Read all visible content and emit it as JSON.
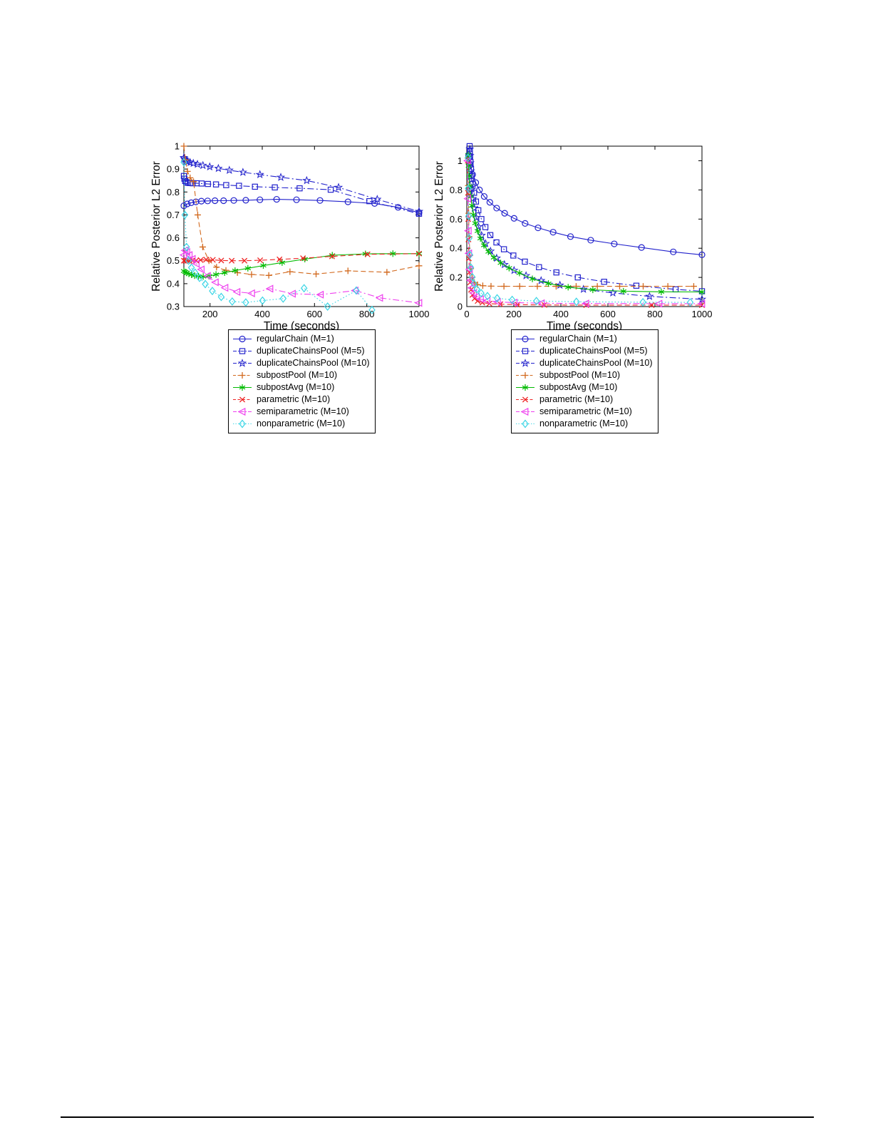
{
  "figure": {
    "xlabel": "Time (seconds)",
    "ylabel": "Relative Posterior L2 Error"
  },
  "chart_data": [
    {
      "id": "left",
      "type": "line",
      "title": "",
      "xlabel": "Time (seconds)",
      "ylabel": "Relative Posterior L2 Error",
      "xlim": [
        100,
        1000
      ],
      "ylim": [
        0.3,
        1.0
      ],
      "xticks": [
        200,
        400,
        600,
        800,
        1000
      ],
      "xticklabels": [
        "200",
        "400",
        "600",
        "800",
        "1000"
      ],
      "yticks": [
        0.3,
        0.4,
        0.5,
        0.6,
        0.7,
        0.8,
        0.9,
        1
      ],
      "yticklabels": [
        "0.3",
        "0.4",
        "0.5",
        "0.6",
        "0.7",
        "0.8",
        "0.9",
        "1"
      ],
      "grid": false,
      "legend_position": "below",
      "series": [
        {
          "name": "regularChain (M=1)",
          "color": "#2222CC",
          "marker": "circle",
          "linestyle": "solid",
          "x": [
            100,
            113,
            128,
            146,
            167,
            191,
            219,
            252,
            291,
            337,
            391,
            455,
            531,
            621,
            728,
            830,
            920,
            1000
          ],
          "y": [
            0.74,
            0.748,
            0.753,
            0.757,
            0.76,
            0.761,
            0.762,
            0.762,
            0.763,
            0.764,
            0.766,
            0.768,
            0.766,
            0.763,
            0.757,
            0.75,
            0.733,
            0.71
          ]
        },
        {
          "name": "duplicateChainsPool (M=5)",
          "color": "#2222CC",
          "marker": "square",
          "linestyle": "dashdot",
          "x": [
            100,
            102,
            105,
            109,
            115,
            123,
            134,
            149,
            168,
            192,
            223,
            262,
            311,
            372,
            448,
            543,
            662,
            810,
            1000
          ],
          "y": [
            0.87,
            0.858,
            0.848,
            0.843,
            0.84,
            0.839,
            0.838,
            0.838,
            0.837,
            0.835,
            0.833,
            0.83,
            0.827,
            0.823,
            0.82,
            0.816,
            0.81,
            0.76,
            0.705
          ]
        },
        {
          "name": "duplicateChainsPool (M=10)",
          "color": "#2222CC",
          "marker": "star",
          "linestyle": "dashdot",
          "x": [
            100,
            102,
            105,
            109,
            115,
            124,
            136,
            152,
            173,
            199,
            232,
            274,
            326,
            391,
            471,
            570,
            692,
            840,
            1000
          ],
          "y": [
            0.95,
            0.945,
            0.94,
            0.936,
            0.932,
            0.929,
            0.925,
            0.921,
            0.916,
            0.91,
            0.903,
            0.895,
            0.886,
            0.876,
            0.864,
            0.85,
            0.82,
            0.768,
            0.715
          ]
        },
        {
          "name": "subpostPool (M=10)",
          "color": "#D2691E",
          "marker": "plus",
          "linestyle": "dashed",
          "x": [
            100,
            106,
            114,
            124,
            137,
            153,
            172,
            196,
            225,
            261,
            305,
            359,
            425,
            506,
            606,
            728,
            877,
            1000
          ],
          "y": [
            1.0,
            0.94,
            0.89,
            0.862,
            0.845,
            0.7,
            0.56,
            0.5,
            0.472,
            0.458,
            0.448,
            0.44,
            0.436,
            0.452,
            0.442,
            0.456,
            0.45,
            0.478
          ]
        },
        {
          "name": "subpostAvg (M=10)",
          "color": "#00BB00",
          "marker": "asterisk",
          "linestyle": "solid",
          "x": [
            100,
            105,
            111,
            119,
            129,
            141,
            156,
            174,
            196,
            223,
            256,
            296,
            345,
            404,
            476,
            563,
            668,
            795,
            900,
            1000
          ],
          "y": [
            0.455,
            0.451,
            0.447,
            0.443,
            0.439,
            0.435,
            0.432,
            0.431,
            0.433,
            0.44,
            0.448,
            0.457,
            0.467,
            0.479,
            0.492,
            0.507,
            0.524,
            0.53,
            0.531,
            0.531
          ]
        },
        {
          "name": "parametric (M=10)",
          "color": "#EE2222",
          "marker": "x",
          "linestyle": "dashed",
          "x": [
            100,
            106,
            113,
            122,
            133,
            147,
            164,
            185,
            211,
            243,
            283,
            332,
            392,
            466,
            556,
            667,
            803,
            1000
          ],
          "y": [
            0.5,
            0.5,
            0.5,
            0.499,
            0.5,
            0.501,
            0.503,
            0.505,
            0.504,
            0.501,
            0.5,
            0.5,
            0.502,
            0.506,
            0.511,
            0.519,
            0.528,
            0.531
          ]
        },
        {
          "name": "semiparametric (M=10)",
          "color": "#EE3FEE",
          "marker": "triangle-left",
          "linestyle": "dashdot",
          "x": [
            100,
            105,
            112,
            121,
            133,
            148,
            167,
            191,
            221,
            258,
            304,
            360,
            430,
            516,
            623,
            756,
            850,
            1000
          ],
          "y": [
            0.525,
            0.545,
            0.538,
            0.525,
            0.508,
            0.487,
            0.462,
            0.434,
            0.406,
            0.382,
            0.364,
            0.358,
            0.378,
            0.356,
            0.352,
            0.37,
            0.338,
            0.316
          ]
        },
        {
          "name": "nonparametric (M=10)",
          "color": "#3AD5E5",
          "marker": "diamond",
          "linestyle": "dotted",
          "x": [
            100,
            104,
            110,
            118,
            129,
            143,
            160,
            182,
            209,
            243,
            285,
            337,
            401,
            480,
            560,
            650,
            760,
            820
          ],
          "y": [
            0.93,
            0.7,
            0.56,
            0.5,
            0.47,
            0.448,
            0.425,
            0.398,
            0.368,
            0.342,
            0.322,
            0.318,
            0.326,
            0.335,
            0.38,
            0.3,
            0.37,
            0.285
          ]
        }
      ]
    },
    {
      "id": "right",
      "type": "line",
      "title": "",
      "xlabel": "Time (seconds)",
      "ylabel": "Relative Posterior L2 Error",
      "xlim": [
        0,
        1000
      ],
      "ylim": [
        0,
        1.1
      ],
      "xticks": [
        0,
        200,
        400,
        600,
        800,
        1000
      ],
      "xticklabels": [
        "0",
        "200",
        "400",
        "600",
        "800",
        "1000"
      ],
      "yticks": [
        0,
        0.2,
        0.4,
        0.6,
        0.8,
        1
      ],
      "yticklabels": [
        "0",
        "0.2",
        "0.4",
        "0.6",
        "0.8",
        "1"
      ],
      "grid": false,
      "legend_position": "below",
      "series": [
        {
          "name": "regularChain (M=1)",
          "color": "#2222CC",
          "marker": "circle",
          "linestyle": "solid",
          "x": [
            8,
            15,
            25,
            38,
            54,
            74,
            98,
            127,
            161,
            201,
            248,
            303,
            367,
            441,
            527,
            627,
            743,
            878,
            1000
          ],
          "y": [
            1.04,
            0.97,
            0.905,
            0.85,
            0.8,
            0.755,
            0.715,
            0.675,
            0.64,
            0.605,
            0.57,
            0.54,
            0.51,
            0.48,
            0.455,
            0.43,
            0.405,
            0.375,
            0.355
          ]
        },
        {
          "name": "duplicateChainsPool (M=5)",
          "color": "#2222CC",
          "marker": "square",
          "linestyle": "dashdot",
          "x": [
            12,
            13,
            14,
            16,
            18,
            21,
            25,
            31,
            39,
            49,
            62,
            79,
            100,
            126,
            158,
            198,
            247,
            307,
            381,
            472,
            584,
            721,
            888,
            1000
          ],
          "y": [
            1.1,
            1.065,
            1.03,
            0.99,
            0.945,
            0.895,
            0.84,
            0.78,
            0.72,
            0.66,
            0.6,
            0.545,
            0.49,
            0.44,
            0.393,
            0.35,
            0.308,
            0.27,
            0.234,
            0.2,
            0.17,
            0.143,
            0.118,
            0.105
          ]
        },
        {
          "name": "duplicateChainsPool (M=10)",
          "color": "#2222CC",
          "marker": "star",
          "linestyle": "dashdot",
          "x": [
            13,
            14,
            15,
            17,
            19,
            22,
            26,
            32,
            40,
            50,
            63,
            80,
            101,
            127,
            160,
            201,
            252,
            316,
            396,
            496,
            621,
            777,
            1000
          ],
          "y": [
            1.08,
            1.035,
            0.985,
            0.93,
            0.87,
            0.805,
            0.74,
            0.675,
            0.61,
            0.548,
            0.488,
            0.432,
            0.38,
            0.332,
            0.288,
            0.248,
            0.212,
            0.178,
            0.147,
            0.119,
            0.094,
            0.07,
            0.05
          ]
        },
        {
          "name": "subpostPool (M=10)",
          "color": "#D2691E",
          "marker": "plus",
          "linestyle": "dashed",
          "x": [
            5,
            6,
            8,
            10,
            13,
            17,
            23,
            32,
            46,
            68,
            103,
            158,
            225,
            300,
            380,
            465,
            555,
            650,
            750,
            855,
            965
          ],
          "y": [
            1.02,
            0.83,
            0.64,
            0.48,
            0.35,
            0.26,
            0.2,
            0.165,
            0.15,
            0.143,
            0.14,
            0.139,
            0.139,
            0.139,
            0.139,
            0.139,
            0.139,
            0.139,
            0.139,
            0.139,
            0.139
          ]
        },
        {
          "name": "subpostAvg (M=10)",
          "color": "#00BB00",
          "marker": "asterisk",
          "linestyle": "solid",
          "x": [
            6,
            8,
            10,
            13,
            17,
            22,
            28,
            36,
            46,
            58,
            73,
            92,
            115,
            144,
            180,
            224,
            279,
            347,
            431,
            536,
            666,
            827,
            1000
          ],
          "y": [
            1.04,
            0.965,
            0.895,
            0.825,
            0.757,
            0.692,
            0.63,
            0.572,
            0.518,
            0.467,
            0.42,
            0.376,
            0.336,
            0.299,
            0.264,
            0.23,
            0.19,
            0.158,
            0.133,
            0.115,
            0.105,
            0.101,
            0.1
          ]
        },
        {
          "name": "parametric (M=10)",
          "color": "#EE2222",
          "marker": "x",
          "linestyle": "dashed",
          "x": [
            4,
            5,
            6,
            7,
            9,
            11,
            14,
            18,
            24,
            33,
            46,
            66,
            96,
            143,
            216,
            330,
            508,
            786,
            1000
          ],
          "y": [
            1.0,
            0.78,
            0.6,
            0.46,
            0.33,
            0.235,
            0.165,
            0.115,
            0.08,
            0.055,
            0.038,
            0.027,
            0.02,
            0.016,
            0.013,
            0.011,
            0.01,
            0.01,
            0.01
          ]
        },
        {
          "name": "semiparametric (M=10)",
          "color": "#EE3FEE",
          "marker": "triangle-left",
          "linestyle": "dashdot",
          "x": [
            4,
            5,
            7,
            9,
            12,
            16,
            21,
            29,
            41,
            59,
            87,
            131,
            202,
            318,
            507,
            818,
            1000
          ],
          "y": [
            1.0,
            0.74,
            0.52,
            0.365,
            0.255,
            0.18,
            0.128,
            0.092,
            0.068,
            0.051,
            0.04,
            0.032,
            0.027,
            0.023,
            0.021,
            0.02,
            0.02
          ]
        },
        {
          "name": "nonparametric (M=10)",
          "color": "#3AD5E5",
          "marker": "diamond",
          "linestyle": "dotted",
          "x": [
            5,
            6,
            8,
            10,
            13,
            17,
            23,
            31,
            43,
            61,
            88,
            129,
            193,
            296,
            466,
            749,
            950
          ],
          "y": [
            1.02,
            0.81,
            0.62,
            0.47,
            0.355,
            0.268,
            0.203,
            0.155,
            0.119,
            0.092,
            0.072,
            0.057,
            0.046,
            0.038,
            0.033,
            0.03,
            0.029
          ]
        }
      ]
    }
  ]
}
